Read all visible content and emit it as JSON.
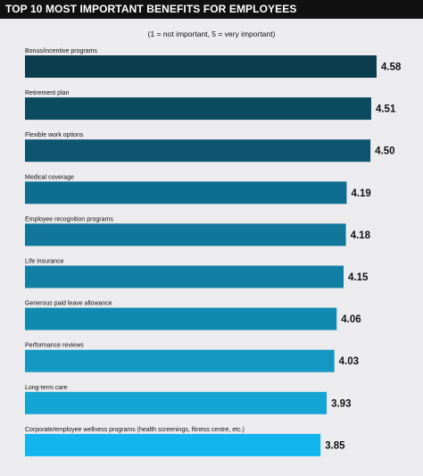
{
  "header": {
    "title": "TOP 10 MOST IMPORTANT BENEFITS FOR EMPLOYEES",
    "subtitle": "(1 = not important, 5 = very important)"
  },
  "chart_data": {
    "type": "bar",
    "orientation": "horizontal",
    "title": "TOP 10 MOST IMPORTANT BENEFITS FOR EMPLOYEES",
    "subtitle": "(1 = not important, 5 = very important)",
    "categories": [
      "Bonus/incentive programs",
      "Retirement plan",
      "Flexible work options",
      "Medical coverage",
      "Employee recognition programs",
      "Life insurance",
      "Generous paid leave allowance",
      "Performance reviews",
      "Long-term care",
      "Corporate/employee wellness programs (health screenings, fitness centre, etc.)"
    ],
    "values": [
      4.58,
      4.51,
      4.5,
      4.19,
      4.18,
      4.15,
      4.06,
      4.03,
      3.93,
      3.85
    ],
    "value_labels": [
      "4.58",
      "4.51",
      "4.50",
      "4.19",
      "4.18",
      "4.15",
      "4.06",
      "4.03",
      "3.93",
      "3.85"
    ],
    "colors": [
      "#0b3d4f",
      "#0c4a60",
      "#0d5470",
      "#0f6d8f",
      "#10769a",
      "#117ea4",
      "#1289b0",
      "#1497c2",
      "#14a5d4",
      "#12b5ee"
    ],
    "xlabel": "",
    "ylabel": "",
    "xlim": [
      0,
      5
    ],
    "grid": false,
    "legend": "none"
  }
}
